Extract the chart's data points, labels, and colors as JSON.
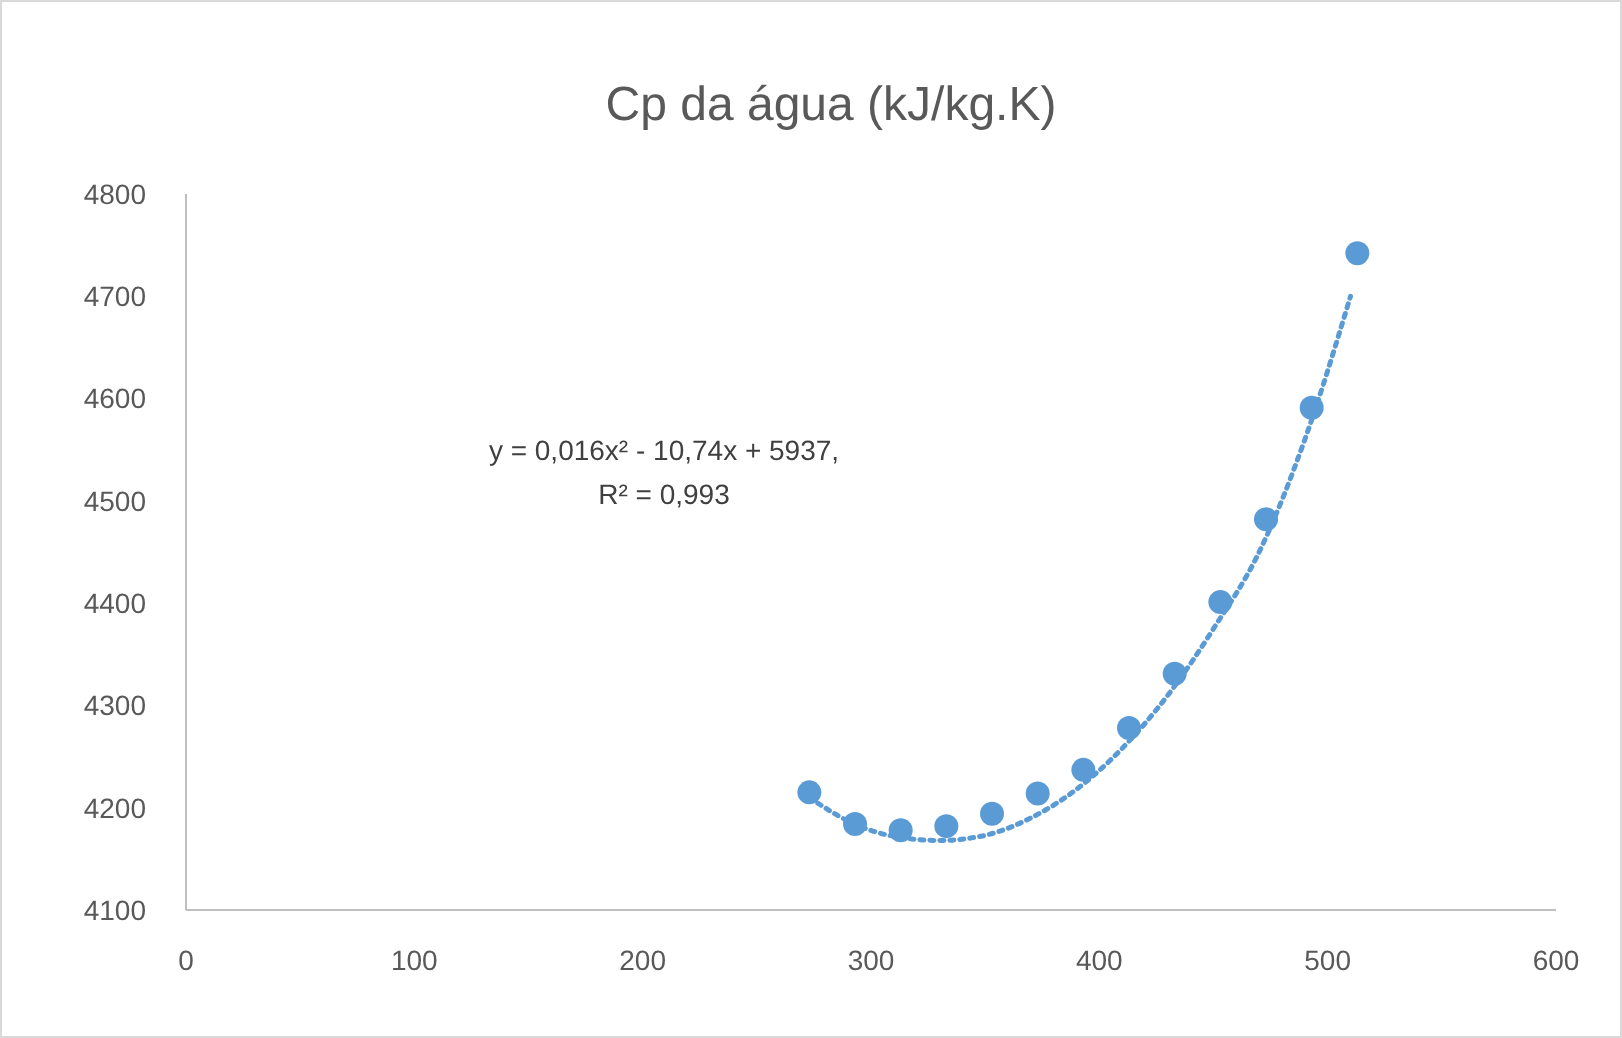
{
  "chart_data": {
    "type": "scatter",
    "title": "Cp da água (kJ/kg.K)",
    "xlim": [
      0,
      600
    ],
    "xticks": [
      0,
      100,
      200,
      300,
      400,
      500,
      600
    ],
    "ylim": [
      4100,
      4800
    ],
    "yticks": [
      4100,
      4200,
      4300,
      4400,
      4500,
      4600,
      4700,
      4800
    ],
    "grid": false,
    "marker": "circle",
    "series": [
      {
        "color": "#5b9bd5",
        "x": [
          273,
          293,
          313,
          333,
          353,
          373,
          393,
          413,
          433,
          453,
          473,
          493,
          513
        ],
        "values": [
          4215,
          4184,
          4178,
          4182,
          4194,
          4214,
          4237,
          4278,
          4331,
          4401,
          4482,
          4591,
          4742
        ]
      },
      {
        "type": "line",
        "color": "#5b9bd5",
        "line_style": "dotted",
        "marker": "none",
        "x": [
          273,
          290,
          310,
          330,
          350,
          370,
          390,
          410,
          430,
          450,
          470,
          490,
          510
        ],
        "values": [
          4210,
          4187,
          4172,
          4168,
          4173,
          4190,
          4218,
          4258,
          4310,
          4375,
          4450,
          4560,
          4700
        ]
      }
    ],
    "annotations": [
      "y = 0,016x² - 10,74x + 5937,",
      "R² = 0,993"
    ]
  }
}
